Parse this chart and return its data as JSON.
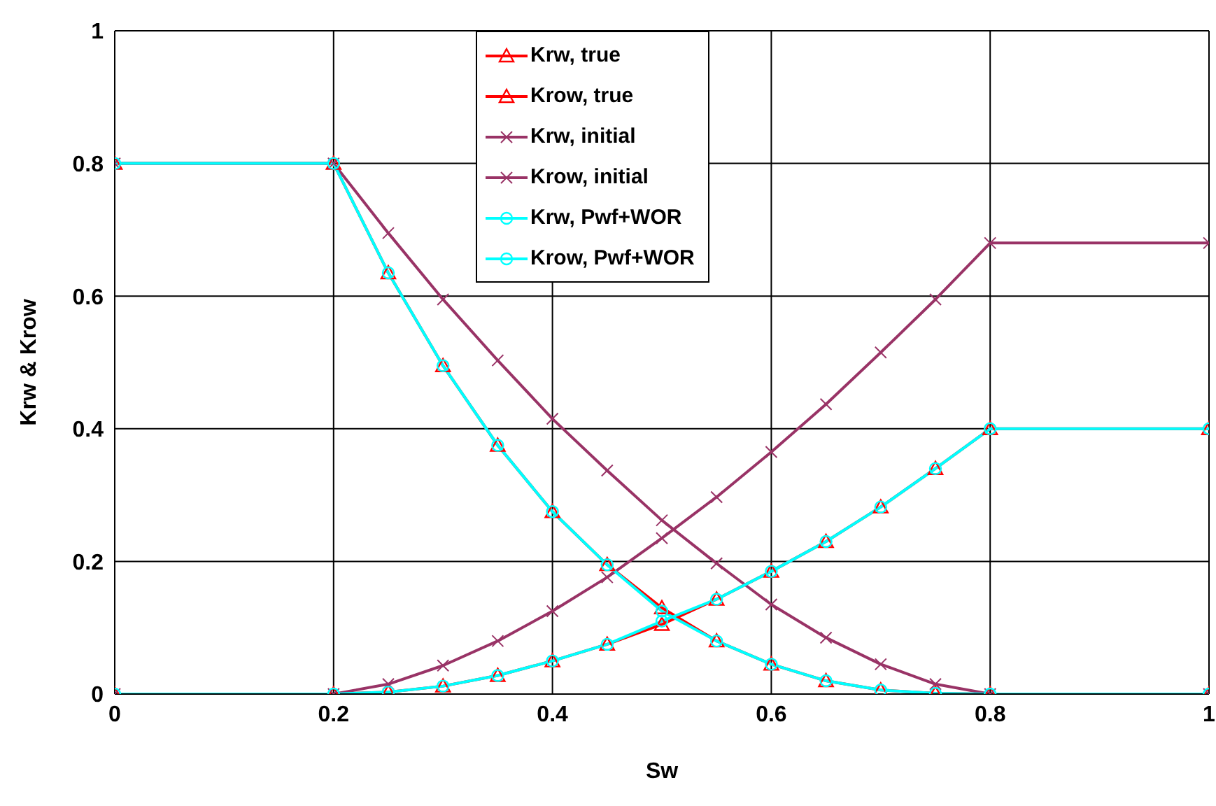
{
  "chart_data": {
    "type": "line",
    "xlabel": "Sw",
    "ylabel": "Krw & Krow",
    "x": [
      0,
      0.2,
      0.25,
      0.3,
      0.35,
      0.4,
      0.45,
      0.5,
      0.55,
      0.6,
      0.65,
      0.7,
      0.75,
      0.8,
      1
    ],
    "series": [
      {
        "name": "Krw, true",
        "color": "#ff0000",
        "marker": "triangle",
        "values": [
          0,
          0,
          0.003,
          0.012,
          0.028,
          0.05,
          0.075,
          0.105,
          0.143,
          0.185,
          0.23,
          0.282,
          0.34,
          0.4,
          0.4
        ]
      },
      {
        "name": "Krow, true",
        "color": "#ff0000",
        "marker": "triangle",
        "values": [
          0.8,
          0.8,
          0.635,
          0.495,
          0.375,
          0.275,
          0.195,
          0.13,
          0.08,
          0.045,
          0.02,
          0.006,
          0.001,
          0,
          0
        ]
      },
      {
        "name": "Krw, initial",
        "color": "#993366",
        "marker": "cross",
        "values": [
          0,
          0,
          0.015,
          0.043,
          0.08,
          0.125,
          0.176,
          0.235,
          0.297,
          0.365,
          0.437,
          0.515,
          0.595,
          0.68,
          0.68
        ]
      },
      {
        "name": "Krow, initial",
        "color": "#993366",
        "marker": "cross",
        "values": [
          0.8,
          0.8,
          0.695,
          0.595,
          0.503,
          0.415,
          0.337,
          0.262,
          0.197,
          0.135,
          0.085,
          0.045,
          0.015,
          0,
          0
        ]
      },
      {
        "name": "Krw, Pwf+WOR",
        "color": "#00ffff",
        "marker": "circle",
        "values": [
          0,
          0,
          0.003,
          0.012,
          0.028,
          0.05,
          0.075,
          0.11,
          0.143,
          0.185,
          0.23,
          0.282,
          0.34,
          0.4,
          0.4
        ]
      },
      {
        "name": "Krow, Pwf+WOR",
        "color": "#00ffff",
        "marker": "circle",
        "values": [
          0.8,
          0.8,
          0.635,
          0.495,
          0.375,
          0.275,
          0.195,
          0.125,
          0.08,
          0.045,
          0.02,
          0.006,
          0.001,
          0,
          0
        ]
      }
    ],
    "xlim": [
      0,
      1
    ],
    "xticks": [
      0,
      0.2,
      0.4,
      0.6,
      0.8,
      1
    ],
    "ylim": [
      0,
      1
    ],
    "yticks": [
      0,
      0.2,
      0.4,
      0.6,
      0.8,
      1
    ],
    "grid": true,
    "legend": "top"
  }
}
